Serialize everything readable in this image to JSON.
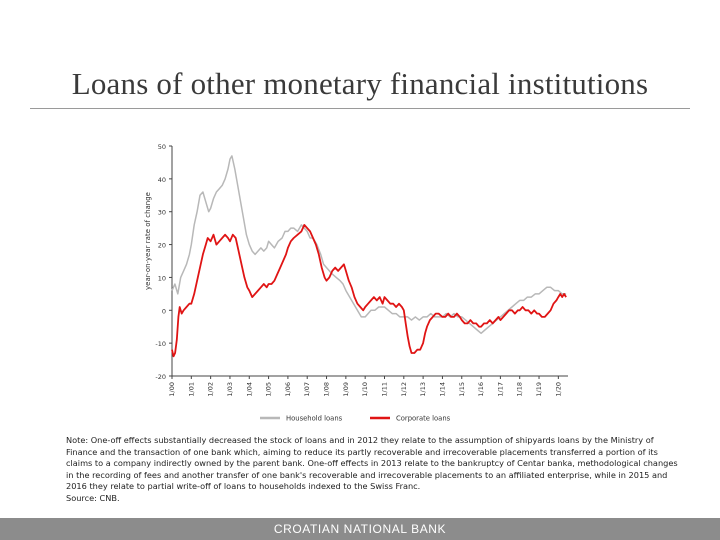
{
  "slide": {
    "title": "Loans of other monetary financial institutions",
    "note": "Note: One-off effects substantially decreased the stock of loans and in 2012 they relate to the assumption of shipyards loans by the Ministry of Finance and the transaction of one bank which, aiming to reduce its partly recoverable and irrecoverable placements transferred a portion of its claims to a company indirectly owned by the parent bank. One-off effects in 2013 relate to the bankruptcy of Centar banka, methodological changes in the recording of fees and another transfer of one bank's recoverable and irrecoverable placements to an affiliated enterprise, while in 2015 and 2016 they relate to partial write-off of loans to households indexed to the Swiss Franc.",
    "source": "Source: CNB.",
    "footer": "CROATIAN NATIONAL BANK"
  },
  "chart_data": {
    "type": "line",
    "title": "",
    "xlabel": "",
    "ylabel": "year-on-year rate of change",
    "ylim": [
      -20,
      50
    ],
    "yticks": [
      50,
      40,
      30,
      20,
      10,
      0,
      -10,
      -20
    ],
    "ytick_labels": [
      "50",
      "40",
      "30",
      "20",
      "10",
      "0",
      "-10",
      "-20"
    ],
    "xlim": [
      2000.0,
      2020.5
    ],
    "xticks": [
      2000,
      2001,
      2002,
      2003,
      2004,
      2005,
      2006,
      2007,
      2008,
      2009,
      2010,
      2011,
      2012,
      2013,
      2014,
      2015,
      2016,
      2017,
      2018,
      2019,
      2020
    ],
    "xtick_labels": [
      "1/00",
      "1/01",
      "1/02",
      "1/03",
      "1/04",
      "1/05",
      "1/06",
      "1/07",
      "1/08",
      "1/09",
      "1/10",
      "1/11",
      "1/12",
      "1/13",
      "1/14",
      "1/15",
      "1/16",
      "1/17",
      "1/18",
      "1/19",
      "1/20"
    ],
    "grid": false,
    "legend_position": "bottom",
    "series": [
      {
        "name": "Household loans",
        "color": "#b8b8b8",
        "points": [
          [
            2000.0,
            6
          ],
          [
            2000.15,
            8
          ],
          [
            2000.3,
            5
          ],
          [
            2000.45,
            10
          ],
          [
            2000.6,
            12
          ],
          [
            2000.75,
            14
          ],
          [
            2000.9,
            17
          ],
          [
            2001.0,
            20
          ],
          [
            2001.15,
            26
          ],
          [
            2001.3,
            30
          ],
          [
            2001.45,
            35
          ],
          [
            2001.6,
            36
          ],
          [
            2001.75,
            33
          ],
          [
            2001.9,
            30
          ],
          [
            2002.0,
            31
          ],
          [
            2002.15,
            34
          ],
          [
            2002.3,
            36
          ],
          [
            2002.45,
            37
          ],
          [
            2002.6,
            38
          ],
          [
            2002.75,
            40
          ],
          [
            2002.9,
            43
          ],
          [
            2003.0,
            46
          ],
          [
            2003.1,
            47
          ],
          [
            2003.25,
            43
          ],
          [
            2003.4,
            38
          ],
          [
            2003.55,
            33
          ],
          [
            2003.7,
            28
          ],
          [
            2003.85,
            23
          ],
          [
            2004.0,
            20
          ],
          [
            2004.15,
            18
          ],
          [
            2004.3,
            17
          ],
          [
            2004.45,
            18
          ],
          [
            2004.6,
            19
          ],
          [
            2004.75,
            18
          ],
          [
            2004.9,
            19
          ],
          [
            2005.0,
            21
          ],
          [
            2005.15,
            20
          ],
          [
            2005.3,
            19
          ],
          [
            2005.5,
            21
          ],
          [
            2005.7,
            22
          ],
          [
            2005.85,
            24
          ],
          [
            2006.0,
            24
          ],
          [
            2006.15,
            25
          ],
          [
            2006.3,
            25
          ],
          [
            2006.5,
            24
          ],
          [
            2006.7,
            26
          ],
          [
            2006.85,
            25
          ],
          [
            2007.0,
            24
          ],
          [
            2007.15,
            22
          ],
          [
            2007.3,
            22
          ],
          [
            2007.5,
            20
          ],
          [
            2007.7,
            17
          ],
          [
            2007.85,
            14
          ],
          [
            2008.0,
            13
          ],
          [
            2008.15,
            12
          ],
          [
            2008.3,
            11
          ],
          [
            2008.5,
            10
          ],
          [
            2008.7,
            9
          ],
          [
            2008.85,
            8
          ],
          [
            2009.0,
            6
          ],
          [
            2009.2,
            4
          ],
          [
            2009.4,
            2
          ],
          [
            2009.6,
            0
          ],
          [
            2009.8,
            -2
          ],
          [
            2010.0,
            -2
          ],
          [
            2010.15,
            -1
          ],
          [
            2010.3,
            0
          ],
          [
            2010.5,
            0
          ],
          [
            2010.7,
            1
          ],
          [
            2010.85,
            1
          ],
          [
            2011.0,
            1
          ],
          [
            2011.2,
            0
          ],
          [
            2011.4,
            -1
          ],
          [
            2011.6,
            -1
          ],
          [
            2011.8,
            -2
          ],
          [
            2012.0,
            -2
          ],
          [
            2012.2,
            -2
          ],
          [
            2012.4,
            -3
          ],
          [
            2012.6,
            -2
          ],
          [
            2012.8,
            -3
          ],
          [
            2013.0,
            -2
          ],
          [
            2013.2,
            -2
          ],
          [
            2013.4,
            -1
          ],
          [
            2013.6,
            -2
          ],
          [
            2013.8,
            -2
          ],
          [
            2014.0,
            -2
          ],
          [
            2014.2,
            -1
          ],
          [
            2014.4,
            -2
          ],
          [
            2014.6,
            -1
          ],
          [
            2014.8,
            -2
          ],
          [
            2015.0,
            -2
          ],
          [
            2015.2,
            -3
          ],
          [
            2015.4,
            -4
          ],
          [
            2015.6,
            -5
          ],
          [
            2015.8,
            -6
          ],
          [
            2016.0,
            -7
          ],
          [
            2016.2,
            -6
          ],
          [
            2016.4,
            -5
          ],
          [
            2016.6,
            -4
          ],
          [
            2016.8,
            -3
          ],
          [
            2017.0,
            -2
          ],
          [
            2017.2,
            -1
          ],
          [
            2017.4,
            0
          ],
          [
            2017.6,
            1
          ],
          [
            2017.8,
            2
          ],
          [
            2018.0,
            3
          ],
          [
            2018.2,
            3
          ],
          [
            2018.4,
            4
          ],
          [
            2018.6,
            4
          ],
          [
            2018.8,
            5
          ],
          [
            2019.0,
            5
          ],
          [
            2019.2,
            6
          ],
          [
            2019.4,
            7
          ],
          [
            2019.6,
            7
          ],
          [
            2019.8,
            6
          ],
          [
            2020.0,
            6
          ],
          [
            2020.2,
            5
          ],
          [
            2020.4,
            5
          ]
        ]
      },
      {
        "name": "Corporate loans",
        "color": "#e01414",
        "points": [
          [
            2000.0,
            -12
          ],
          [
            2000.08,
            -14
          ],
          [
            2000.16,
            -13
          ],
          [
            2000.25,
            -9
          ],
          [
            2000.33,
            -2
          ],
          [
            2000.4,
            1
          ],
          [
            2000.5,
            -1
          ],
          [
            2000.6,
            0
          ],
          [
            2000.75,
            1
          ],
          [
            2000.9,
            2
          ],
          [
            2001.0,
            2
          ],
          [
            2001.15,
            5
          ],
          [
            2001.3,
            9
          ],
          [
            2001.45,
            13
          ],
          [
            2001.6,
            17
          ],
          [
            2001.75,
            20
          ],
          [
            2001.85,
            22
          ],
          [
            2002.0,
            21
          ],
          [
            2002.15,
            23
          ],
          [
            2002.3,
            20
          ],
          [
            2002.45,
            21
          ],
          [
            2002.6,
            22
          ],
          [
            2002.75,
            23
          ],
          [
            2002.9,
            22
          ],
          [
            2003.0,
            21
          ],
          [
            2003.15,
            23
          ],
          [
            2003.3,
            22
          ],
          [
            2003.45,
            18
          ],
          [
            2003.6,
            14
          ],
          [
            2003.75,
            10
          ],
          [
            2003.9,
            7
          ],
          [
            2004.0,
            6
          ],
          [
            2004.15,
            4
          ],
          [
            2004.3,
            5
          ],
          [
            2004.45,
            6
          ],
          [
            2004.6,
            7
          ],
          [
            2004.75,
            8
          ],
          [
            2004.9,
            7
          ],
          [
            2005.0,
            8
          ],
          [
            2005.15,
            8
          ],
          [
            2005.3,
            9
          ],
          [
            2005.45,
            11
          ],
          [
            2005.6,
            13
          ],
          [
            2005.75,
            15
          ],
          [
            2005.9,
            17
          ],
          [
            2006.0,
            19
          ],
          [
            2006.15,
            21
          ],
          [
            2006.3,
            22
          ],
          [
            2006.5,
            23
          ],
          [
            2006.7,
            24
          ],
          [
            2006.85,
            26
          ],
          [
            2007.0,
            25
          ],
          [
            2007.15,
            24
          ],
          [
            2007.3,
            22
          ],
          [
            2007.45,
            20
          ],
          [
            2007.6,
            17
          ],
          [
            2007.75,
            13
          ],
          [
            2007.9,
            10
          ],
          [
            2008.0,
            9
          ],
          [
            2008.15,
            10
          ],
          [
            2008.3,
            12
          ],
          [
            2008.45,
            13
          ],
          [
            2008.6,
            12
          ],
          [
            2008.75,
            13
          ],
          [
            2008.9,
            14
          ],
          [
            2009.0,
            12
          ],
          [
            2009.15,
            9
          ],
          [
            2009.3,
            7
          ],
          [
            2009.45,
            4
          ],
          [
            2009.6,
            2
          ],
          [
            2009.75,
            1
          ],
          [
            2009.9,
            0
          ],
          [
            2010.0,
            1
          ],
          [
            2010.15,
            2
          ],
          [
            2010.3,
            3
          ],
          [
            2010.45,
            4
          ],
          [
            2010.6,
            3
          ],
          [
            2010.75,
            4
          ],
          [
            2010.9,
            2
          ],
          [
            2011.0,
            4
          ],
          [
            2011.15,
            3
          ],
          [
            2011.3,
            2
          ],
          [
            2011.45,
            2
          ],
          [
            2011.6,
            1
          ],
          [
            2011.75,
            2
          ],
          [
            2011.9,
            1
          ],
          [
            2012.0,
            0
          ],
          [
            2012.1,
            -4
          ],
          [
            2012.2,
            -8
          ],
          [
            2012.3,
            -11
          ],
          [
            2012.4,
            -13
          ],
          [
            2012.55,
            -13
          ],
          [
            2012.7,
            -12
          ],
          [
            2012.85,
            -12
          ],
          [
            2013.0,
            -10
          ],
          [
            2013.1,
            -7
          ],
          [
            2013.2,
            -5
          ],
          [
            2013.35,
            -3
          ],
          [
            2013.5,
            -2
          ],
          [
            2013.65,
            -1
          ],
          [
            2013.8,
            -1
          ],
          [
            2014.0,
            -2
          ],
          [
            2014.15,
            -2
          ],
          [
            2014.3,
            -1
          ],
          [
            2014.45,
            -2
          ],
          [
            2014.6,
            -2
          ],
          [
            2014.75,
            -1
          ],
          [
            2014.9,
            -2
          ],
          [
            2015.0,
            -3
          ],
          [
            2015.15,
            -4
          ],
          [
            2015.3,
            -4
          ],
          [
            2015.45,
            -3
          ],
          [
            2015.6,
            -4
          ],
          [
            2015.75,
            -4
          ],
          [
            2015.9,
            -5
          ],
          [
            2016.0,
            -5
          ],
          [
            2016.15,
            -4
          ],
          [
            2016.3,
            -4
          ],
          [
            2016.45,
            -3
          ],
          [
            2016.6,
            -4
          ],
          [
            2016.75,
            -3
          ],
          [
            2016.9,
            -2
          ],
          [
            2017.0,
            -3
          ],
          [
            2017.15,
            -2
          ],
          [
            2017.3,
            -1
          ],
          [
            2017.45,
            0
          ],
          [
            2017.6,
            0
          ],
          [
            2017.75,
            -1
          ],
          [
            2017.9,
            0
          ],
          [
            2018.0,
            0
          ],
          [
            2018.15,
            1
          ],
          [
            2018.3,
            0
          ],
          [
            2018.45,
            0
          ],
          [
            2018.6,
            -1
          ],
          [
            2018.75,
            0
          ],
          [
            2018.9,
            -1
          ],
          [
            2019.0,
            -1
          ],
          [
            2019.15,
            -2
          ],
          [
            2019.3,
            -2
          ],
          [
            2019.45,
            -1
          ],
          [
            2019.6,
            0
          ],
          [
            2019.75,
            2
          ],
          [
            2019.9,
            3
          ],
          [
            2020.0,
            4
          ],
          [
            2020.1,
            5
          ],
          [
            2020.2,
            4
          ],
          [
            2020.3,
            5
          ],
          [
            2020.4,
            4
          ]
        ]
      }
    ]
  }
}
